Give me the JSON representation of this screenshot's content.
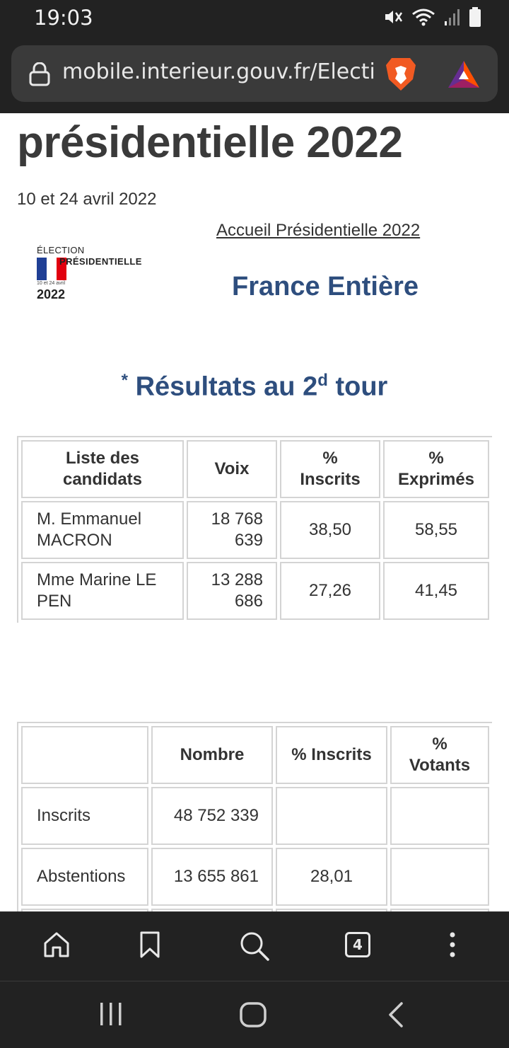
{
  "status_bar": {
    "time": "19:03"
  },
  "browser": {
    "url": "mobile.interieur.gouv.fr/Electio",
    "tab_count": "4"
  },
  "page": {
    "title": "présidentielle 2022",
    "dates": "10 et 24 avril 2022",
    "home_link": "Accueil Présidentielle 2022",
    "logo": {
      "line1": "ÉLECTION",
      "line2": "PRÉSIDENTIELLE",
      "line3": "10 et 24 avril",
      "line4": "2022"
    },
    "region": "France Entière",
    "results_title": {
      "star": "*",
      "prefix": "Résultats au 2",
      "sup": "d",
      "suffix": " tour"
    }
  },
  "candidates_table": {
    "headers": [
      "Liste des candidats",
      "Voix",
      "% Inscrits",
      "% Exprimés"
    ],
    "rows": [
      {
        "name": "M. Emmanuel MACRON",
        "voix": "18 768 639",
        "inscrits": "38,50",
        "exprimes": "58,55"
      },
      {
        "name": "Mme Marine LE PEN",
        "voix": "13 288 686",
        "inscrits": "27,26",
        "exprimes": "41,45"
      }
    ]
  },
  "participation_table": {
    "headers": [
      "",
      "Nombre",
      "% Inscrits",
      "% Votants"
    ],
    "rows": [
      {
        "label": "Inscrits",
        "nombre": "48 752 339",
        "inscrits": "",
        "votants": ""
      },
      {
        "label": "Abstentions",
        "nombre": "13 655 861",
        "inscrits": "28,01",
        "votants": ""
      }
    ]
  },
  "colors": {
    "heading_blue": "#2e4e7e",
    "chrome_dark": "#222222",
    "flag_blue": "#1f3f95",
    "flag_red": "#e1000f"
  },
  "icons": [
    "mute-icon",
    "wifi-icon",
    "signal-icon",
    "battery-icon",
    "lock-icon",
    "brave-lion-icon",
    "bat-rewards-icon",
    "home-icon",
    "bookmark-icon",
    "search-icon",
    "tabs-icon",
    "more-icon",
    "recents-icon",
    "home-nav-icon",
    "back-icon"
  ]
}
